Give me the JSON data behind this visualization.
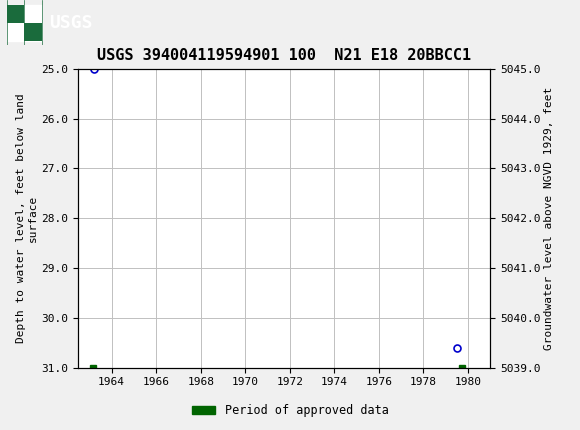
{
  "title": "USGS 394004119594901 100  N21 E18 20BBCC1",
  "title_fontsize": 11,
  "header_color": "#1a6b3c",
  "bg_color": "#f0f0f0",
  "plot_bg_color": "#ffffff",
  "grid_color": "#c0c0c0",
  "left_ylabel": "Depth to water level, feet below land\nsurface",
  "right_ylabel": "Groundwater level above NGVD 1929, feet",
  "xlim": [
    1962.5,
    1981.0
  ],
  "ylim_left_bottom": 31.0,
  "ylim_left_top": 25.0,
  "ylim_right_bottom": 5039.0,
  "ylim_right_top": 5045.0,
  "xtick_labels": [
    "1964",
    "1966",
    "1968",
    "1970",
    "1972",
    "1974",
    "1976",
    "1978",
    "1980"
  ],
  "xtick_values": [
    1964,
    1966,
    1968,
    1970,
    1972,
    1974,
    1976,
    1978,
    1980
  ],
  "ytick_left": [
    25.0,
    26.0,
    27.0,
    28.0,
    29.0,
    30.0,
    31.0
  ],
  "ytick_right": [
    5039.0,
    5040.0,
    5041.0,
    5042.0,
    5043.0,
    5044.0,
    5045.0
  ],
  "data_points_open": [
    {
      "x": 1963.2,
      "y_left": 25.0,
      "color": "#0000cc"
    },
    {
      "x": 1979.5,
      "y_left": 30.6,
      "color": "#0000cc"
    }
  ],
  "data_points_filled": [
    {
      "x": 1963.15,
      "y_left": 31.0,
      "color": "#006400"
    },
    {
      "x": 1979.75,
      "y_left": 31.0,
      "color": "#006400"
    }
  ],
  "legend_label": "Period of approved data",
  "legend_color": "#006400",
  "font_family": "monospace",
  "tick_fontsize": 8,
  "label_fontsize": 8
}
